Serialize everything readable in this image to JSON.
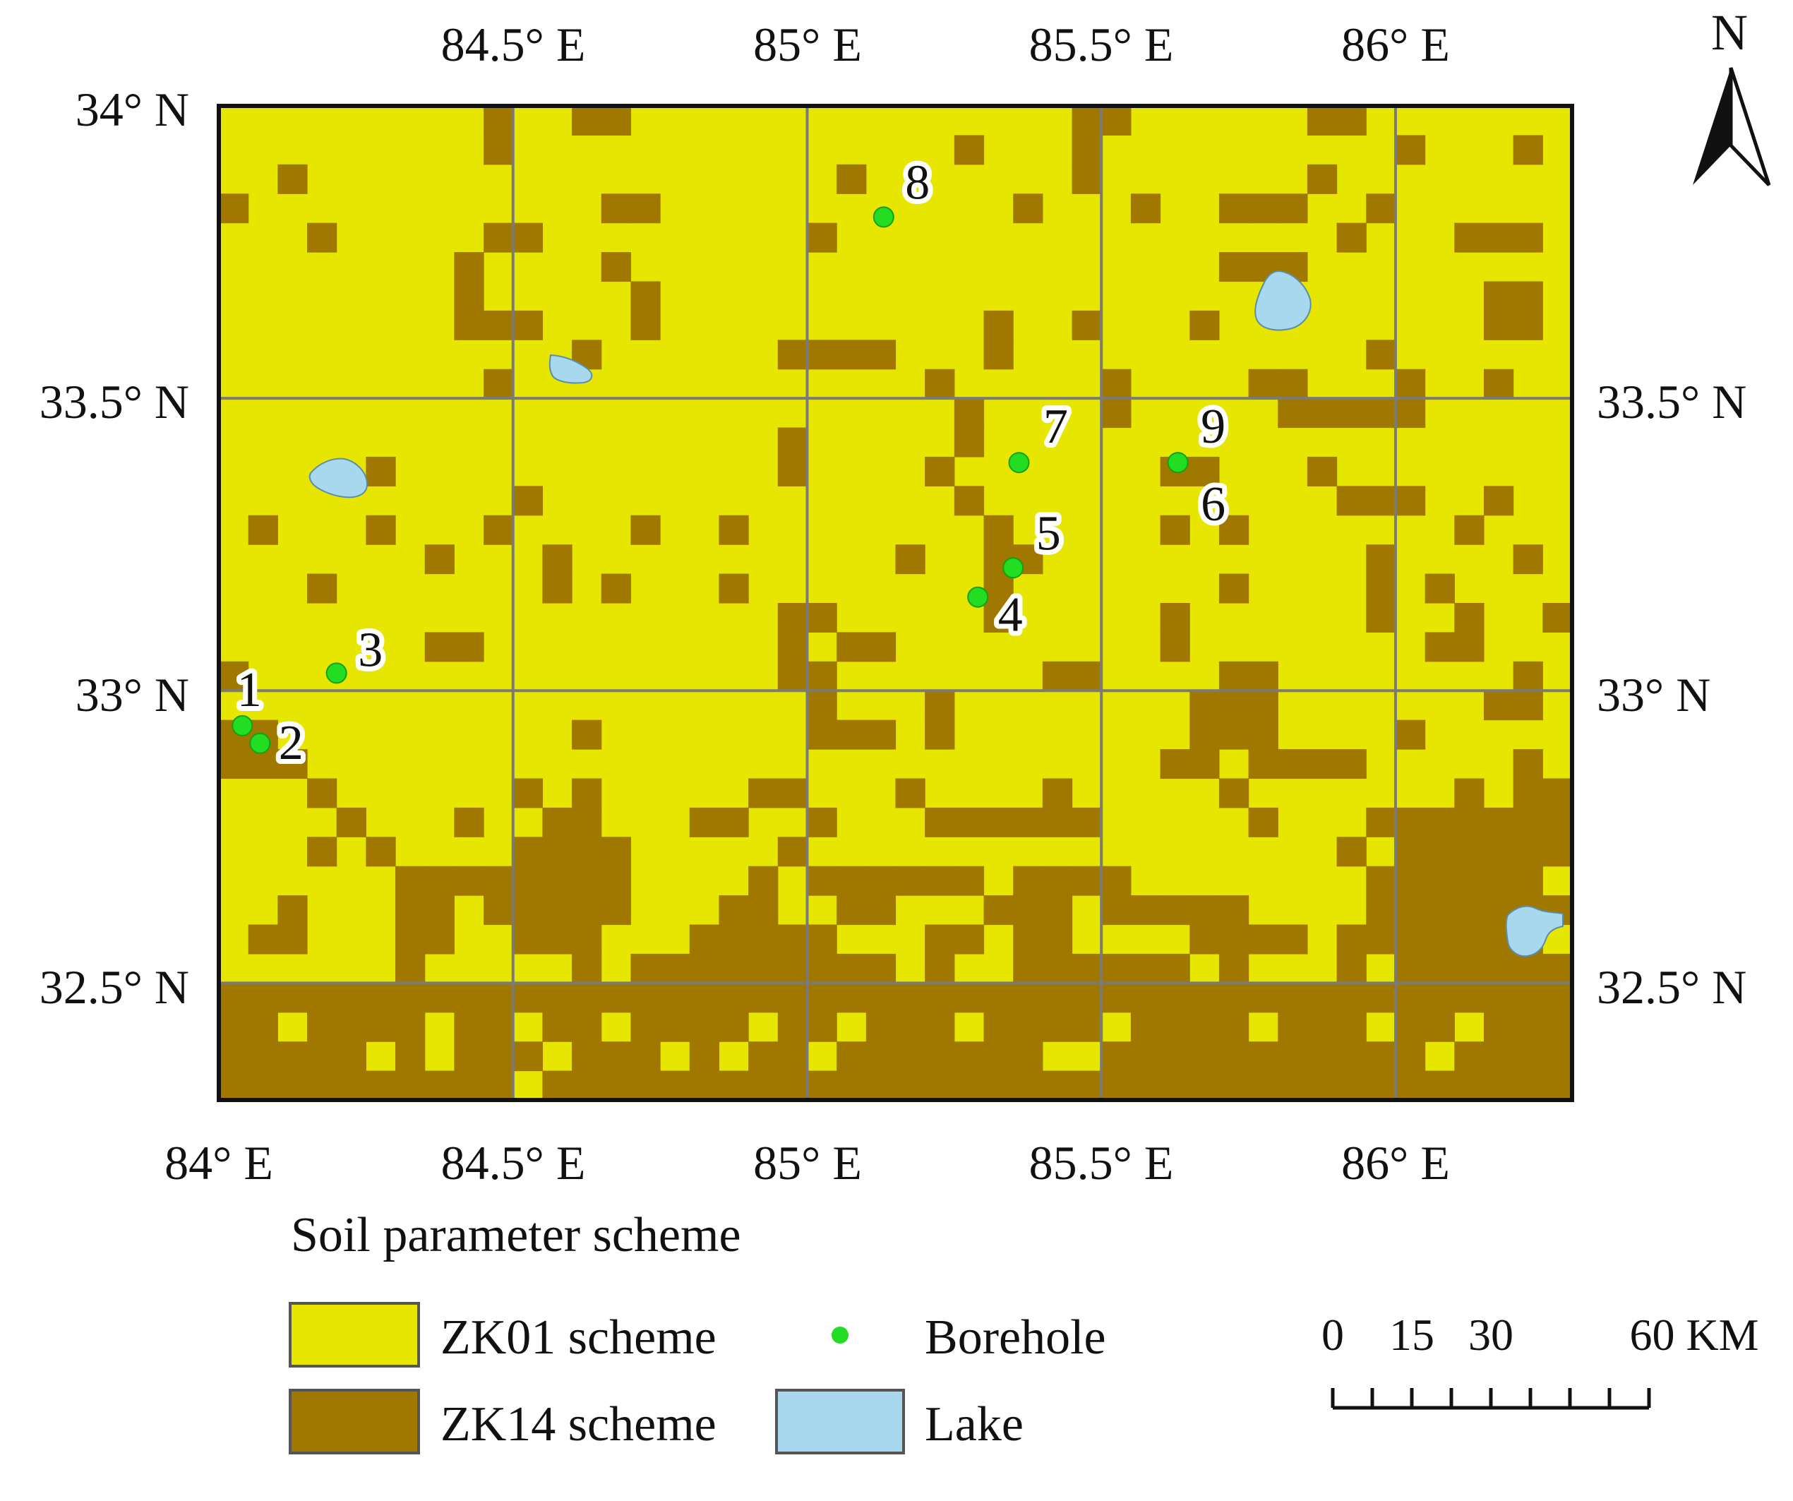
{
  "map": {
    "lon_min": 84.0,
    "lon_max": 86.3,
    "lat_min": 32.3,
    "lat_max": 34.0,
    "grid_cols": 46,
    "grid_rows": 34,
    "graticule_lons": [
      84.5,
      85.0,
      85.5,
      86.0
    ],
    "graticule_lats": [
      33.5,
      33.0,
      32.5
    ],
    "top_lon_labels": [
      "84.5° E",
      "85° E",
      "85.5° E",
      "86° E"
    ],
    "bottom_lon_labels": [
      "84° E",
      "84.5° E",
      "85° E",
      "85.5° E",
      "86° E"
    ],
    "left_lat_labels": [
      "34° N",
      "33.5° N",
      "33° N",
      "32.5° N"
    ],
    "right_lat_labels": [
      "33.5° N",
      "33° N",
      "32.5° N"
    ],
    "north_label": "N"
  },
  "zk14_cells": [
    [
      0,
      9
    ],
    [
      0,
      12
    ],
    [
      0,
      13
    ],
    [
      0,
      29
    ],
    [
      0,
      30
    ],
    [
      0,
      37
    ],
    [
      0,
      38
    ],
    [
      1,
      9
    ],
    [
      1,
      25
    ],
    [
      1,
      29
    ],
    [
      1,
      40
    ],
    [
      1,
      44
    ],
    [
      2,
      2
    ],
    [
      2,
      21
    ],
    [
      2,
      29
    ],
    [
      2,
      37
    ],
    [
      3,
      0
    ],
    [
      3,
      13
    ],
    [
      3,
      14
    ],
    [
      3,
      27
    ],
    [
      3,
      31
    ],
    [
      3,
      34
    ],
    [
      3,
      35
    ],
    [
      3,
      36
    ],
    [
      3,
      39
    ],
    [
      4,
      3
    ],
    [
      4,
      9
    ],
    [
      4,
      10
    ],
    [
      4,
      20
    ],
    [
      4,
      38
    ],
    [
      4,
      42
    ],
    [
      4,
      43
    ],
    [
      4,
      44
    ],
    [
      5,
      8
    ],
    [
      5,
      13
    ],
    [
      5,
      34
    ],
    [
      5,
      35
    ],
    [
      5,
      36
    ],
    [
      6,
      8
    ],
    [
      6,
      14
    ],
    [
      6,
      43
    ],
    [
      6,
      44
    ],
    [
      7,
      8
    ],
    [
      7,
      9
    ],
    [
      7,
      10
    ],
    [
      7,
      14
    ],
    [
      7,
      26
    ],
    [
      7,
      29
    ],
    [
      7,
      33
    ],
    [
      7,
      43
    ],
    [
      7,
      44
    ],
    [
      8,
      12
    ],
    [
      8,
      19
    ],
    [
      8,
      20
    ],
    [
      8,
      21
    ],
    [
      8,
      22
    ],
    [
      8,
      26
    ],
    [
      8,
      39
    ],
    [
      9,
      9
    ],
    [
      9,
      24
    ],
    [
      9,
      30
    ],
    [
      9,
      35
    ],
    [
      9,
      36
    ],
    [
      9,
      40
    ],
    [
      9,
      43
    ],
    [
      10,
      25
    ],
    [
      10,
      30
    ],
    [
      10,
      36
    ],
    [
      10,
      37
    ],
    [
      10,
      38
    ],
    [
      10,
      39
    ],
    [
      10,
      40
    ],
    [
      11,
      19
    ],
    [
      11,
      25
    ],
    [
      12,
      5
    ],
    [
      12,
      19
    ],
    [
      12,
      24
    ],
    [
      12,
      32
    ],
    [
      12,
      33
    ],
    [
      12,
      37
    ],
    [
      13,
      10
    ],
    [
      13,
      25
    ],
    [
      13,
      38
    ],
    [
      13,
      39
    ],
    [
      13,
      40
    ],
    [
      13,
      43
    ],
    [
      14,
      1
    ],
    [
      14,
      5
    ],
    [
      14,
      9
    ],
    [
      14,
      14
    ],
    [
      14,
      17
    ],
    [
      14,
      26
    ],
    [
      14,
      32
    ],
    [
      14,
      34
    ],
    [
      14,
      42
    ],
    [
      15,
      7
    ],
    [
      15,
      11
    ],
    [
      15,
      23
    ],
    [
      15,
      26
    ],
    [
      15,
      27
    ],
    [
      15,
      39
    ],
    [
      15,
      44
    ],
    [
      16,
      3
    ],
    [
      16,
      11
    ],
    [
      16,
      13
    ],
    [
      16,
      17
    ],
    [
      16,
      26
    ],
    [
      16,
      34
    ],
    [
      16,
      39
    ],
    [
      16,
      41
    ],
    [
      17,
      19
    ],
    [
      17,
      20
    ],
    [
      17,
      26
    ],
    [
      17,
      32
    ],
    [
      17,
      39
    ],
    [
      17,
      42
    ],
    [
      17,
      45
    ],
    [
      18,
      7
    ],
    [
      18,
      8
    ],
    [
      18,
      19
    ],
    [
      18,
      21
    ],
    [
      18,
      22
    ],
    [
      18,
      32
    ],
    [
      18,
      41
    ],
    [
      18,
      42
    ],
    [
      19,
      0
    ],
    [
      19,
      19
    ],
    [
      19,
      20
    ],
    [
      19,
      28
    ],
    [
      19,
      29
    ],
    [
      19,
      34
    ],
    [
      19,
      35
    ],
    [
      19,
      44
    ],
    [
      20,
      20
    ],
    [
      20,
      24
    ],
    [
      20,
      33
    ],
    [
      20,
      34
    ],
    [
      20,
      35
    ],
    [
      20,
      43
    ],
    [
      20,
      44
    ],
    [
      21,
      0
    ],
    [
      21,
      1
    ],
    [
      21,
      12
    ],
    [
      21,
      20
    ],
    [
      21,
      21
    ],
    [
      21,
      22
    ],
    [
      21,
      24
    ],
    [
      21,
      33
    ],
    [
      21,
      34
    ],
    [
      21,
      35
    ],
    [
      21,
      40
    ],
    [
      22,
      0
    ],
    [
      22,
      1
    ],
    [
      22,
      2
    ],
    [
      22,
      32
    ],
    [
      22,
      33
    ],
    [
      22,
      35
    ],
    [
      22,
      36
    ],
    [
      22,
      37
    ],
    [
      22,
      38
    ],
    [
      22,
      44
    ],
    [
      23,
      3
    ],
    [
      23,
      10
    ],
    [
      23,
      12
    ],
    [
      23,
      18
    ],
    [
      23,
      19
    ],
    [
      23,
      23
    ],
    [
      23,
      28
    ],
    [
      23,
      34
    ],
    [
      23,
      42
    ],
    [
      23,
      44
    ],
    [
      23,
      45
    ],
    [
      24,
      4
    ],
    [
      24,
      8
    ],
    [
      24,
      11
    ],
    [
      24,
      12
    ],
    [
      24,
      16
    ],
    [
      24,
      17
    ],
    [
      24,
      20
    ],
    [
      24,
      24
    ],
    [
      24,
      25
    ],
    [
      24,
      26
    ],
    [
      24,
      27
    ],
    [
      24,
      28
    ],
    [
      24,
      29
    ],
    [
      24,
      35
    ],
    [
      24,
      39
    ],
    [
      24,
      40
    ],
    [
      24,
      41
    ],
    [
      24,
      42
    ],
    [
      24,
      43
    ],
    [
      24,
      44
    ],
    [
      24,
      45
    ],
    [
      25,
      3
    ],
    [
      25,
      5
    ],
    [
      25,
      10
    ],
    [
      25,
      11
    ],
    [
      25,
      12
    ],
    [
      25,
      13
    ],
    [
      25,
      19
    ],
    [
      25,
      38
    ],
    [
      25,
      40
    ],
    [
      25,
      41
    ],
    [
      25,
      42
    ],
    [
      25,
      43
    ],
    [
      25,
      44
    ],
    [
      25,
      45
    ],
    [
      26,
      6
    ],
    [
      26,
      7
    ],
    [
      26,
      8
    ],
    [
      26,
      9
    ],
    [
      26,
      10
    ],
    [
      26,
      11
    ],
    [
      26,
      12
    ],
    [
      26,
      13
    ],
    [
      26,
      18
    ],
    [
      26,
      20
    ],
    [
      26,
      21
    ],
    [
      26,
      22
    ],
    [
      26,
      23
    ],
    [
      26,
      24
    ],
    [
      26,
      25
    ],
    [
      26,
      27
    ],
    [
      26,
      28
    ],
    [
      26,
      29
    ],
    [
      26,
      30
    ],
    [
      26,
      39
    ],
    [
      26,
      40
    ],
    [
      26,
      41
    ],
    [
      26,
      42
    ],
    [
      26,
      43
    ],
    [
      26,
      44
    ],
    [
      27,
      2
    ],
    [
      27,
      6
    ],
    [
      27,
      7
    ],
    [
      27,
      9
    ],
    [
      27,
      10
    ],
    [
      27,
      11
    ],
    [
      27,
      12
    ],
    [
      27,
      13
    ],
    [
      27,
      17
    ],
    [
      27,
      18
    ],
    [
      27,
      21
    ],
    [
      27,
      22
    ],
    [
      27,
      26
    ],
    [
      27,
      27
    ],
    [
      27,
      28
    ],
    [
      27,
      30
    ],
    [
      27,
      31
    ],
    [
      27,
      32
    ],
    [
      27,
      33
    ],
    [
      27,
      34
    ],
    [
      27,
      39
    ],
    [
      27,
      40
    ],
    [
      27,
      41
    ],
    [
      27,
      42
    ],
    [
      27,
      43
    ],
    [
      27,
      44
    ],
    [
      27,
      45
    ],
    [
      28,
      1
    ],
    [
      28,
      2
    ],
    [
      28,
      6
    ],
    [
      28,
      7
    ],
    [
      28,
      10
    ],
    [
      28,
      11
    ],
    [
      28,
      12
    ],
    [
      28,
      16
    ],
    [
      28,
      17
    ],
    [
      28,
      18
    ],
    [
      28,
      19
    ],
    [
      28,
      20
    ],
    [
      28,
      24
    ],
    [
      28,
      25
    ],
    [
      28,
      27
    ],
    [
      28,
      28
    ],
    [
      28,
      33
    ],
    [
      28,
      34
    ],
    [
      28,
      35
    ],
    [
      28,
      36
    ],
    [
      28,
      38
    ],
    [
      28,
      39
    ],
    [
      28,
      40
    ],
    [
      28,
      41
    ],
    [
      28,
      42
    ],
    [
      28,
      43
    ],
    [
      28,
      44
    ],
    [
      29,
      6
    ],
    [
      29,
      12
    ],
    [
      29,
      14
    ],
    [
      29,
      15
    ],
    [
      29,
      16
    ],
    [
      29,
      17
    ],
    [
      29,
      18
    ],
    [
      29,
      19
    ],
    [
      29,
      20
    ],
    [
      29,
      21
    ],
    [
      29,
      22
    ],
    [
      29,
      24
    ],
    [
      29,
      27
    ],
    [
      29,
      28
    ],
    [
      29,
      29
    ],
    [
      29,
      30
    ],
    [
      29,
      31
    ],
    [
      29,
      32
    ],
    [
      29,
      34
    ],
    [
      29,
      38
    ],
    [
      29,
      40
    ],
    [
      29,
      41
    ],
    [
      29,
      42
    ],
    [
      29,
      43
    ],
    [
      29,
      44
    ],
    [
      29,
      45
    ],
    [
      30,
      0
    ],
    [
      30,
      1
    ],
    [
      30,
      2
    ],
    [
      30,
      3
    ],
    [
      30,
      4
    ],
    [
      30,
      5
    ],
    [
      30,
      6
    ],
    [
      30,
      7
    ],
    [
      30,
      8
    ],
    [
      30,
      9
    ],
    [
      30,
      10
    ],
    [
      30,
      11
    ],
    [
      30,
      12
    ],
    [
      30,
      13
    ],
    [
      30,
      14
    ],
    [
      30,
      15
    ],
    [
      30,
      16
    ],
    [
      30,
      17
    ],
    [
      30,
      18
    ],
    [
      30,
      19
    ],
    [
      30,
      20
    ],
    [
      30,
      21
    ],
    [
      30,
      22
    ],
    [
      30,
      23
    ],
    [
      30,
      24
    ],
    [
      30,
      25
    ],
    [
      30,
      26
    ],
    [
      30,
      27
    ],
    [
      30,
      28
    ],
    [
      30,
      29
    ],
    [
      30,
      30
    ],
    [
      30,
      31
    ],
    [
      30,
      32
    ],
    [
      30,
      33
    ],
    [
      30,
      34
    ],
    [
      30,
      35
    ],
    [
      30,
      36
    ],
    [
      30,
      37
    ],
    [
      30,
      38
    ],
    [
      30,
      39
    ],
    [
      30,
      40
    ],
    [
      30,
      41
    ],
    [
      30,
      42
    ],
    [
      30,
      43
    ],
    [
      30,
      44
    ],
    [
      30,
      45
    ],
    [
      31,
      0
    ],
    [
      31,
      1
    ],
    [
      31,
      3
    ],
    [
      31,
      4
    ],
    [
      31,
      5
    ],
    [
      31,
      6
    ],
    [
      31,
      8
    ],
    [
      31,
      9
    ],
    [
      31,
      11
    ],
    [
      31,
      12
    ],
    [
      31,
      14
    ],
    [
      31,
      15
    ],
    [
      31,
      16
    ],
    [
      31,
      17
    ],
    [
      31,
      19
    ],
    [
      31,
      20
    ],
    [
      31,
      22
    ],
    [
      31,
      23
    ],
    [
      31,
      24
    ],
    [
      31,
      26
    ],
    [
      31,
      27
    ],
    [
      31,
      28
    ],
    [
      31,
      29
    ],
    [
      31,
      31
    ],
    [
      31,
      32
    ],
    [
      31,
      33
    ],
    [
      31,
      34
    ],
    [
      31,
      36
    ],
    [
      31,
      37
    ],
    [
      31,
      38
    ],
    [
      31,
      40
    ],
    [
      31,
      41
    ],
    [
      31,
      43
    ],
    [
      31,
      44
    ],
    [
      31,
      45
    ],
    [
      32,
      0
    ],
    [
      32,
      1
    ],
    [
      32,
      2
    ],
    [
      32,
      3
    ],
    [
      32,
      4
    ],
    [
      32,
      6
    ],
    [
      32,
      8
    ],
    [
      32,
      9
    ],
    [
      32,
      10
    ],
    [
      32,
      12
    ],
    [
      32,
      13
    ],
    [
      32,
      14
    ],
    [
      32,
      16
    ],
    [
      32,
      18
    ],
    [
      32,
      19
    ],
    [
      32,
      21
    ],
    [
      32,
      22
    ],
    [
      32,
      23
    ],
    [
      32,
      24
    ],
    [
      32,
      25
    ],
    [
      32,
      26
    ],
    [
      32,
      27
    ],
    [
      32,
      30
    ],
    [
      32,
      31
    ],
    [
      32,
      32
    ],
    [
      32,
      33
    ],
    [
      32,
      34
    ],
    [
      32,
      35
    ],
    [
      32,
      36
    ],
    [
      32,
      37
    ],
    [
      32,
      38
    ],
    [
      32,
      39
    ],
    [
      32,
      40
    ],
    [
      32,
      42
    ],
    [
      32,
      43
    ],
    [
      32,
      44
    ],
    [
      32,
      45
    ],
    [
      33,
      0
    ],
    [
      33,
      1
    ],
    [
      33,
      2
    ],
    [
      33,
      3
    ],
    [
      33,
      4
    ],
    [
      33,
      5
    ],
    [
      33,
      6
    ],
    [
      33,
      7
    ],
    [
      33,
      8
    ],
    [
      33,
      9
    ],
    [
      33,
      11
    ],
    [
      33,
      12
    ],
    [
      33,
      13
    ],
    [
      33,
      14
    ],
    [
      33,
      15
    ],
    [
      33,
      16
    ],
    [
      33,
      17
    ],
    [
      33,
      18
    ],
    [
      33,
      19
    ],
    [
      33,
      20
    ],
    [
      33,
      21
    ],
    [
      33,
      22
    ],
    [
      33,
      23
    ],
    [
      33,
      24
    ],
    [
      33,
      25
    ],
    [
      33,
      26
    ],
    [
      33,
      27
    ],
    [
      33,
      28
    ],
    [
      33,
      29
    ],
    [
      33,
      30
    ],
    [
      33,
      31
    ],
    [
      33,
      32
    ],
    [
      33,
      33
    ],
    [
      33,
      34
    ],
    [
      33,
      35
    ],
    [
      33,
      36
    ],
    [
      33,
      37
    ],
    [
      33,
      38
    ],
    [
      33,
      39
    ],
    [
      33,
      40
    ],
    [
      33,
      41
    ],
    [
      33,
      42
    ],
    [
      33,
      43
    ],
    [
      33,
      44
    ],
    [
      33,
      45
    ]
  ],
  "boreholes": [
    {
      "label": "1",
      "lon": 84.04,
      "lat": 32.94
    },
    {
      "label": "2",
      "lon": 84.07,
      "lat": 32.91
    },
    {
      "label": "3",
      "lon": 84.2,
      "lat": 33.03
    },
    {
      "label": "4",
      "lon": 85.29,
      "lat": 33.16
    },
    {
      "label": "5",
      "lon": 85.35,
      "lat": 33.21
    },
    {
      "label": "6",
      "lon": 85.63,
      "lat": 33.39
    },
    {
      "label": "7",
      "lon": 85.36,
      "lat": 33.39
    },
    {
      "label": "8",
      "lon": 85.13,
      "lat": 33.81
    },
    {
      "label": "9",
      "lon": 85.63,
      "lat": 33.39
    }
  ],
  "lakes": [
    {
      "name": "lake-northeast",
      "lon": 85.8,
      "lat": 33.67
    },
    {
      "name": "lake-north-central",
      "lon": 84.6,
      "lat": 33.55
    },
    {
      "name": "lake-west",
      "lon": 84.2,
      "lat": 33.37
    },
    {
      "name": "lake-southeast",
      "lon": 86.23,
      "lat": 32.59
    }
  ],
  "legend": {
    "title": "Soil parameter scheme",
    "zk01": "ZK01 scheme",
    "zk14": "ZK14 scheme",
    "borehole": "Borehole",
    "lake": "Lake"
  },
  "scalebar": {
    "labels": [
      "0",
      "15",
      "30",
      "60 KM"
    ],
    "values_km": [
      0,
      15,
      30,
      60
    ]
  },
  "colors": {
    "zk01": "#e6e600",
    "zk14": "#a07800",
    "lake": "#a8d8ee",
    "borehole": "#22dd22",
    "grid": "#7a7a7a"
  }
}
